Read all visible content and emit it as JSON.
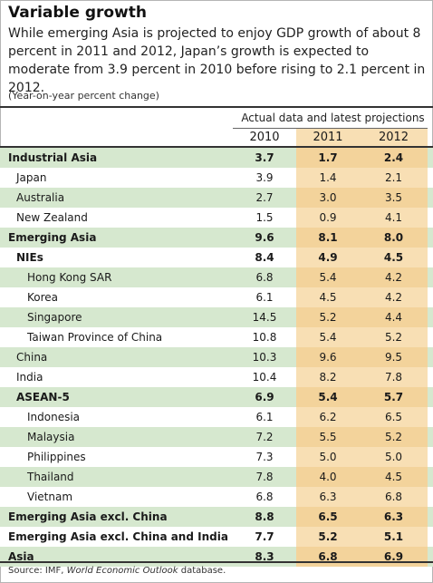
{
  "title": "Variable growth",
  "subtitle": "While emerging Asia is projected to enjoy GDP growth of about 8 percent in 2011 and 2012, Japan’s growth is expected to moderate from 3.9 percent in 2010 before rising to 2.1 percent in 2012.",
  "unit_note": "(Year-on-year percent change)",
  "header_group": "Actual data and latest projections",
  "years": [
    "2010",
    "2011",
    "2012"
  ],
  "rows": [
    {
      "label": "Industrial Asia",
      "level": 0,
      "bold": true,
      "values": [
        "3.7",
        "1.7",
        "2.4"
      ]
    },
    {
      "label": "Japan",
      "level": 1,
      "bold": false,
      "values": [
        "3.9",
        "1.4",
        "2.1"
      ]
    },
    {
      "label": "Australia",
      "level": 1,
      "bold": false,
      "values": [
        "2.7",
        "3.0",
        "3.5"
      ]
    },
    {
      "label": "New Zealand",
      "level": 1,
      "bold": false,
      "values": [
        "1.5",
        "0.9",
        "4.1"
      ]
    },
    {
      "label": "Emerging Asia",
      "level": 0,
      "bold": true,
      "values": [
        "9.6",
        "8.1",
        "8.0"
      ]
    },
    {
      "label": "NIEs",
      "level": 1,
      "bold": true,
      "values": [
        "8.4",
        "4.9",
        "4.5"
      ]
    },
    {
      "label": "Hong Kong SAR",
      "level": 2,
      "bold": false,
      "values": [
        "6.8",
        "5.4",
        "4.2"
      ]
    },
    {
      "label": "Korea",
      "level": 2,
      "bold": false,
      "values": [
        "6.1",
        "4.5",
        "4.2"
      ]
    },
    {
      "label": "Singapore",
      "level": 2,
      "bold": false,
      "values": [
        "14.5",
        "5.2",
        "4.4"
      ]
    },
    {
      "label": "Taiwan Province of China",
      "level": 2,
      "bold": false,
      "values": [
        "10.8",
        "5.4",
        "5.2"
      ]
    },
    {
      "label": "China",
      "level": 1,
      "bold": false,
      "values": [
        "10.3",
        "9.6",
        "9.5"
      ]
    },
    {
      "label": "India",
      "level": 1,
      "bold": false,
      "values": [
        "10.4",
        "8.2",
        "7.8"
      ]
    },
    {
      "label": "ASEAN-5",
      "level": 1,
      "bold": true,
      "values": [
        "6.9",
        "5.4",
        "5.7"
      ]
    },
    {
      "label": "Indonesia",
      "level": 2,
      "bold": false,
      "values": [
        "6.1",
        "6.2",
        "6.5"
      ]
    },
    {
      "label": "Malaysia",
      "level": 2,
      "bold": false,
      "values": [
        "7.2",
        "5.5",
        "5.2"
      ]
    },
    {
      "label": "Philippines",
      "level": 2,
      "bold": false,
      "values": [
        "7.3",
        "5.0",
        "5.0"
      ]
    },
    {
      "label": "Thailand",
      "level": 2,
      "bold": false,
      "values": [
        "7.8",
        "4.0",
        "4.5"
      ]
    },
    {
      "label": "Vietnam",
      "level": 2,
      "bold": false,
      "values": [
        "6.8",
        "6.3",
        "6.8"
      ]
    },
    {
      "label": "Emerging Asia excl. China",
      "level": 0,
      "bold": true,
      "values": [
        "8.8",
        "6.5",
        "6.3"
      ]
    },
    {
      "label": "Emerging Asia excl. China and India",
      "level": 0,
      "bold": true,
      "values": [
        "7.7",
        "5.2",
        "5.1"
      ]
    },
    {
      "label": "Asia",
      "level": 0,
      "bold": true,
      "values": [
        "8.3",
        "6.8",
        "6.9"
      ]
    }
  ],
  "source": {
    "prefix": "Source: IMF, ",
    "italic": "World Economic Outlook",
    "suffix": " database."
  },
  "colors": {
    "row_green": "#d6e8cf",
    "projection_highlight": "#f8dfb4",
    "projection_highlight_on_green": "#f3d39b"
  }
}
